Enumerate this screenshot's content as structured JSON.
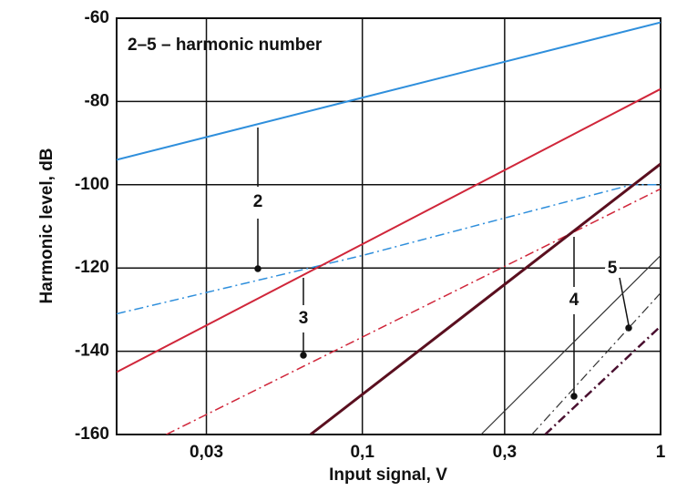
{
  "chart_data": {
    "type": "line",
    "xlabel": "Input signal, V",
    "ylabel": "Harmonic level, dB",
    "annotation": "2–5 – harmonic number",
    "harmonic_labels": [
      "2",
      "3",
      "4",
      "5"
    ],
    "log_x": true,
    "grid": true,
    "xlim": [
      0.015,
      1
    ],
    "ylim": [
      -160,
      -60
    ],
    "xticks": [
      {
        "value": 0.03,
        "label": "0,03"
      },
      {
        "value": 0.1,
        "label": "0,1"
      },
      {
        "value": 0.3,
        "label": "0,3"
      },
      1
    ],
    "yticks": [
      -60,
      -80,
      -100,
      -120,
      -140,
      -160
    ],
    "series": [
      {
        "color": "#2f8fdc",
        "style": "solid",
        "width": 2,
        "x": [
          0.015,
          1
        ],
        "values": [
          -94,
          -61
        ]
      },
      {
        "color": "#2f8fdc",
        "style": "dashdot",
        "width": 1.5,
        "x": [
          0.015,
          0.1,
          0.3,
          0.8,
          1
        ],
        "values": [
          -131,
          -117,
          -108,
          -100,
          -100
        ]
      },
      {
        "color": "#d0263a",
        "style": "solid",
        "width": 2,
        "x": [
          0.015,
          1
        ],
        "values": [
          -145,
          -77
        ]
      },
      {
        "color": "#d0263a",
        "style": "dashdot",
        "width": 1.5,
        "x": [
          0.022,
          1
        ],
        "values": [
          -160,
          -101
        ]
      },
      {
        "color": "#5a0f1f",
        "style": "solid",
        "width": 3,
        "x": [
          0.067,
          1
        ],
        "values": [
          -160,
          -95
        ]
      },
      {
        "color": "#333333",
        "style": "dashdot",
        "width": 1.2,
        "x": [
          0.37,
          1
        ],
        "values": [
          -160,
          -126
        ]
      },
      {
        "color": "#333333",
        "style": "solid",
        "width": 1.2,
        "x": [
          0.25,
          1
        ],
        "values": [
          -160,
          -117
        ]
      },
      {
        "color": "#4a1030",
        "style": "dashdot",
        "width": 2.5,
        "x": [
          0.41,
          1
        ],
        "values": [
          -160,
          -134
        ]
      }
    ]
  }
}
